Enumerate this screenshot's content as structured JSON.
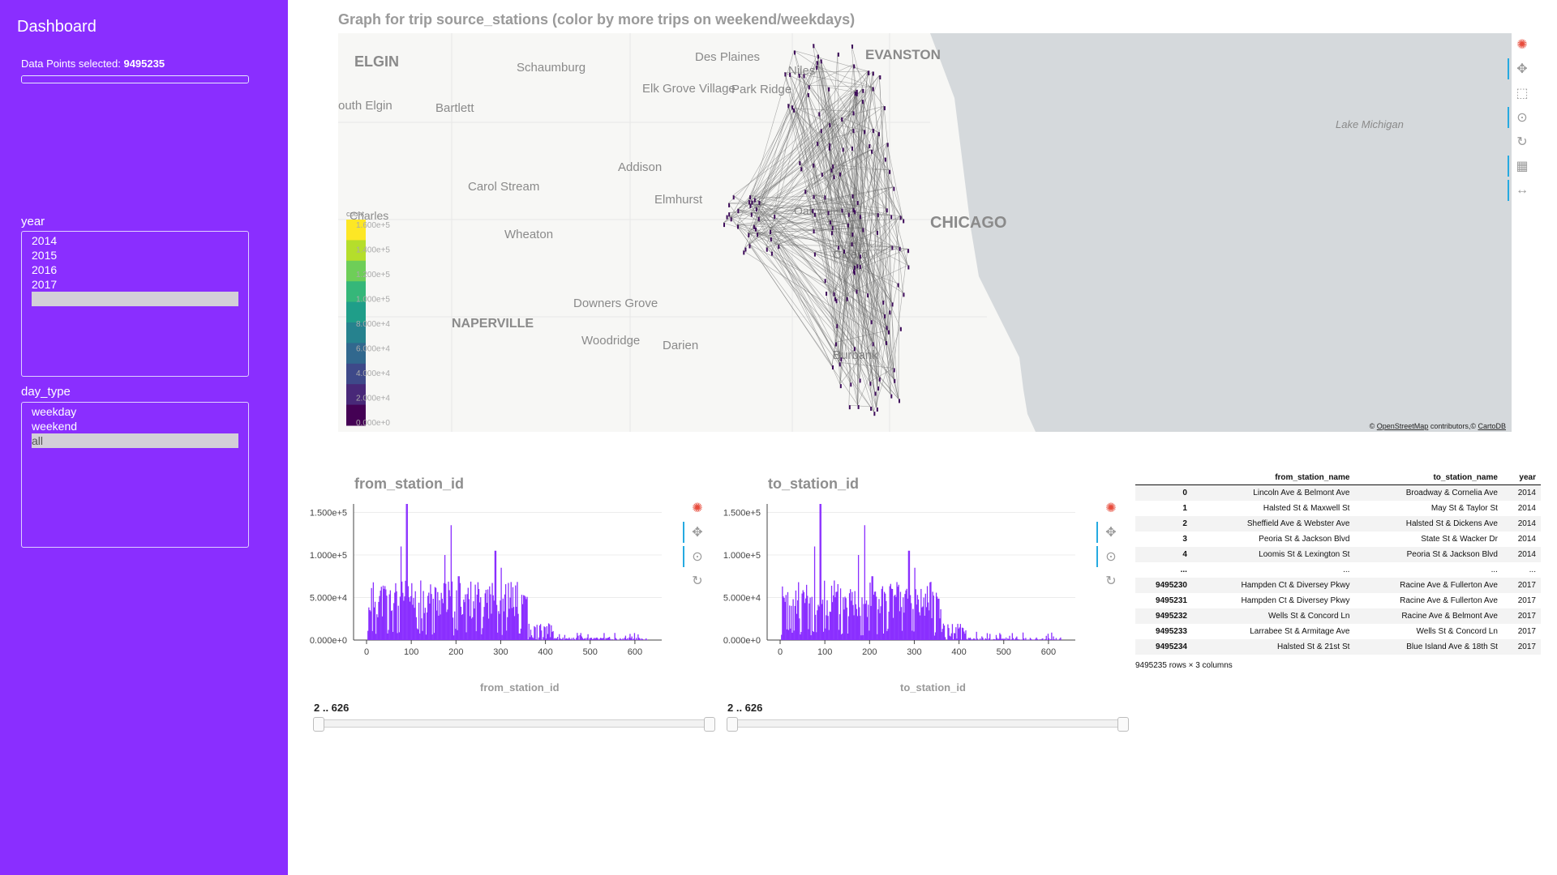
{
  "sidebar": {
    "title": "Dashboard",
    "data_points_label": "Data Points selected: ",
    "data_points_value": "9495235",
    "year_label": "year",
    "year_options": [
      "2014",
      "2015",
      "2016",
      "2017",
      ""
    ],
    "year_selected": 4,
    "day_type_label": "day_type",
    "day_type_options": [
      "weekday",
      "weekend",
      "all"
    ],
    "day_type_selected": 2,
    "accent_color": "#8a2eff"
  },
  "map": {
    "title": "Graph for trip source_stations (color by more trips on weekend/weekdays)",
    "place_labels": [
      "ELGIN",
      "Schaumburg",
      "Des Plaines",
      "Niles",
      "EVANSTON",
      "outh Elgin",
      "Bartlett",
      "Elk Grove Village",
      "Park Ridge",
      "Lake Michigan",
      "Addison",
      "Carol Stream",
      "Elmhurst",
      "Oak",
      "CHICAGO",
      "Wheaton",
      "Cicero",
      "Downers Grove",
      "NAPERVILLE",
      "Woodridge",
      "Darien",
      "Burbank",
      "Charles"
    ],
    "colorbar_title": "count",
    "colorbar_ticks": [
      "1.600e+5",
      "1.400e+5",
      "1.200e+5",
      "1.000e+5",
      "8.000e+4",
      "6.000e+4",
      "4.000e+4",
      "2.000e+4",
      "0.000e+0"
    ],
    "attribution": [
      "© ",
      "OpenStreetMap",
      " contributors,© ",
      "CartoDB"
    ],
    "toolbar_icons": [
      "bokeh-logo-icon",
      "pan-icon",
      "box-zoom-icon",
      "wheel-zoom-icon",
      "reset-icon",
      "box-select-icon",
      "hover-icon"
    ]
  },
  "hist_from": {
    "title": "from_station_id",
    "xlabel": "from_station_id",
    "range_label": "2 .. 626",
    "yticks": [
      "1.500e+5",
      "1.000e+5",
      "5.000e+4",
      "0.000e+0"
    ],
    "xticks": [
      "0",
      "100",
      "200",
      "300",
      "400",
      "500",
      "600"
    ],
    "toolbar_icons": [
      "bokeh-logo-icon",
      "pan-icon",
      "wheel-zoom-icon",
      "reset-icon"
    ]
  },
  "hist_to": {
    "title": "to_station_id",
    "xlabel": "to_station_id",
    "range_label": "2 .. 626",
    "yticks": [
      "1.500e+5",
      "1.000e+5",
      "5.000e+4",
      "0.000e+0"
    ],
    "xticks": [
      "0",
      "100",
      "200",
      "300",
      "400",
      "500",
      "600"
    ],
    "toolbar_icons": [
      "bokeh-logo-icon",
      "pan-icon",
      "wheel-zoom-icon",
      "reset-icon"
    ]
  },
  "table": {
    "columns": [
      "",
      "from_station_name",
      "to_station_name",
      "year"
    ],
    "rows": [
      [
        "0",
        "Lincoln Ave & Belmont Ave",
        "Broadway & Cornelia Ave",
        "2014"
      ],
      [
        "1",
        "Halsted St & Maxwell St",
        "May St & Taylor St",
        "2014"
      ],
      [
        "2",
        "Sheffield Ave & Webster Ave",
        "Halsted St & Dickens Ave",
        "2014"
      ],
      [
        "3",
        "Peoria St & Jackson Blvd",
        "State St & Wacker Dr",
        "2014"
      ],
      [
        "4",
        "Loomis St & Lexington St",
        "Peoria St & Jackson Blvd",
        "2014"
      ],
      [
        "...",
        "...",
        "...",
        "..."
      ],
      [
        "9495230",
        "Hampden Ct & Diversey Pkwy",
        "Racine Ave & Fullerton Ave",
        "2017"
      ],
      [
        "9495231",
        "Hampden Ct & Diversey Pkwy",
        "Racine Ave & Fullerton Ave",
        "2017"
      ],
      [
        "9495232",
        "Wells St & Concord Ln",
        "Racine Ave & Belmont Ave",
        "2017"
      ],
      [
        "9495233",
        "Larrabee St & Armitage Ave",
        "Wells St & Concord Ln",
        "2017"
      ],
      [
        "9495234",
        "Halsted St & 21st St",
        "Blue Island Ave & 18th St",
        "2017"
      ]
    ],
    "footer": "9495235 rows × 3 columns"
  }
}
